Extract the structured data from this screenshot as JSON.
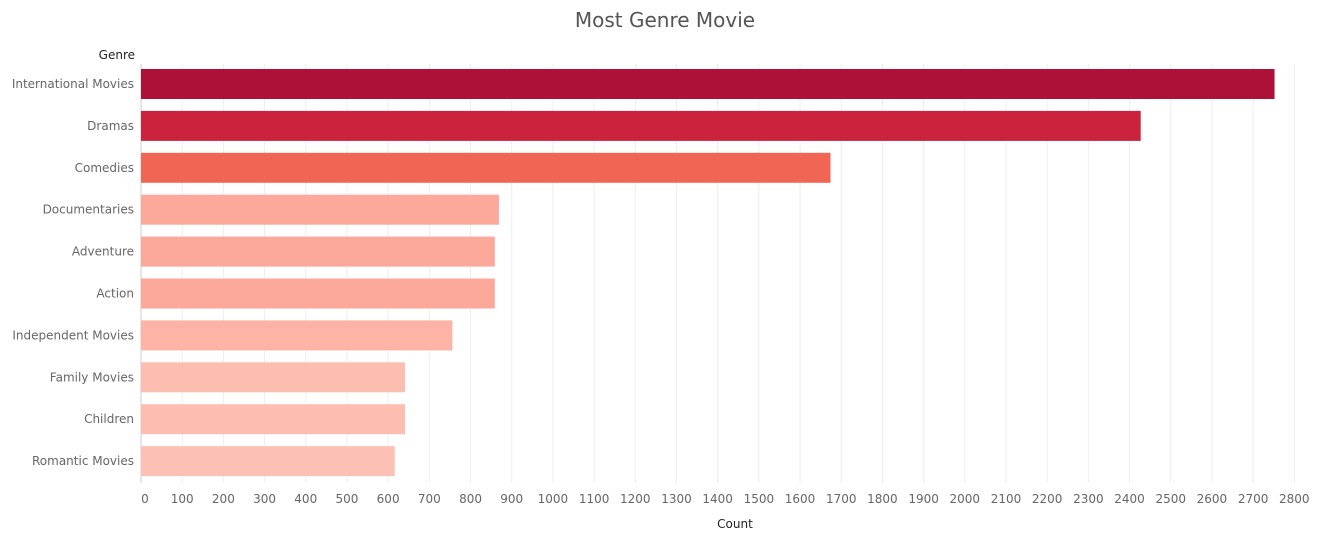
{
  "chart_data": {
    "type": "bar",
    "orientation": "horizontal",
    "title": "Most Genre Movie",
    "ylabel": "Genre",
    "xlabel": "Count",
    "categories": [
      "International Movies",
      "Dramas",
      "Comedies",
      "Documentaries",
      "Adventure",
      "Action",
      "Independent Movies",
      "Family Movies",
      "Children",
      "Romantic Movies"
    ],
    "values": [
      2752,
      2427,
      1674,
      869,
      859,
      859,
      756,
      641,
      641,
      616
    ],
    "colors": [
      "#ad1138",
      "#cb223d",
      "#f16555",
      "#fca89b",
      "#fca89b",
      "#fca89b",
      "#fdb3a6",
      "#fdbeb2",
      "#fdbeb2",
      "#fdc0b4"
    ],
    "xlim": [
      0,
      2850
    ],
    "xticks": [
      0,
      100,
      200,
      300,
      400,
      500,
      600,
      700,
      800,
      900,
      1000,
      1100,
      1200,
      1300,
      1400,
      1500,
      1600,
      1700,
      1800,
      1900,
      2000,
      2100,
      2200,
      2300,
      2400,
      2500,
      2600,
      2700,
      2800
    ],
    "grid": true,
    "legend": "none"
  }
}
